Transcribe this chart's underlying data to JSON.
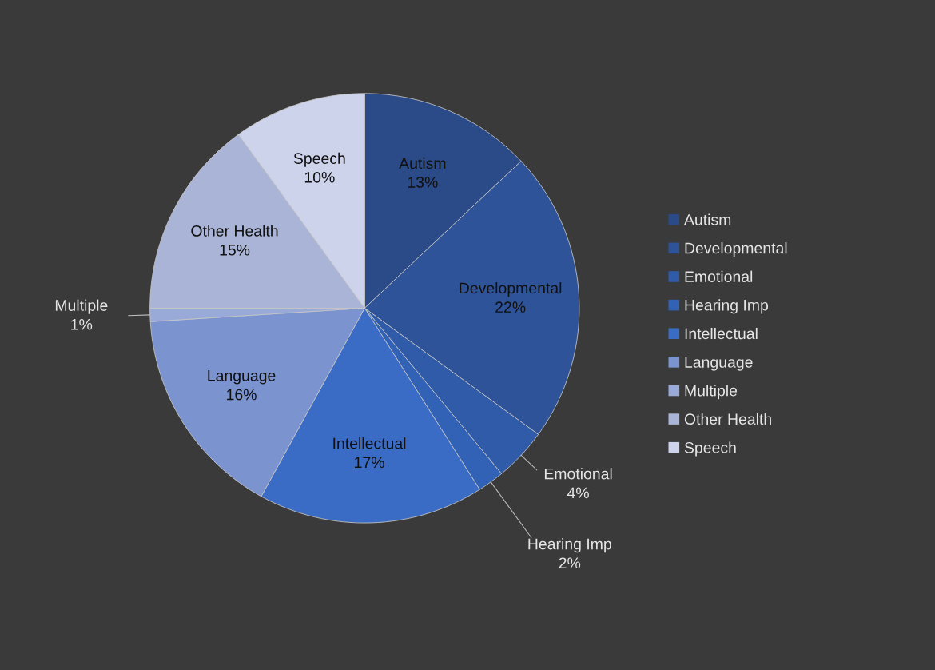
{
  "chart_data": {
    "type": "pie",
    "categories": [
      "Autism",
      "Developmental",
      "Emotional",
      "Hearing Imp",
      "Intellectual",
      "Language",
      "Multiple",
      "Other Health",
      "Speech"
    ],
    "values": [
      13,
      22,
      4,
      2,
      17,
      16,
      1,
      15,
      10
    ],
    "colors": [
      "#2b4a88",
      "#2e5398",
      "#305ba8",
      "#3262b6",
      "#3a6cc6",
      "#7b94d0",
      "#9aaad8",
      "#a9b4d6",
      "#cdd3ea"
    ],
    "value_labels": [
      "13%",
      "22%",
      "4%",
      "2%",
      "17%",
      "16%",
      "1%",
      "15%",
      "10%"
    ],
    "legend": "right"
  }
}
